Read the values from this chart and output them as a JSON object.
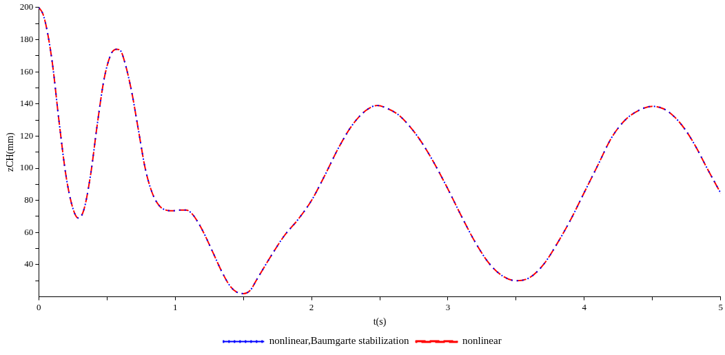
{
  "chart_data": {
    "type": "line",
    "xlabel": "t(s)",
    "ylabel": "zCH(mm)",
    "x": [
      0,
      0.03,
      0.06,
      0.1,
      0.15,
      0.2,
      0.25,
      0.29,
      0.33,
      0.38,
      0.43,
      0.48,
      0.53,
      0.57,
      0.6,
      0.63,
      0.68,
      0.73,
      0.78,
      0.83,
      0.88,
      0.93,
      0.98,
      1.03,
      1.08,
      1.12,
      1.17,
      1.22,
      1.28,
      1.34,
      1.4,
      1.45,
      1.5,
      1.55,
      1.6,
      1.7,
      1.8,
      1.9,
      2.0,
      2.1,
      2.2,
      2.3,
      2.4,
      2.48,
      2.56,
      2.64,
      2.72,
      2.8,
      2.9,
      3.0,
      3.1,
      3.2,
      3.3,
      3.4,
      3.5,
      3.6,
      3.7,
      3.8,
      3.9,
      4.0,
      4.1,
      4.2,
      4.3,
      4.4,
      4.5,
      4.58,
      4.66,
      4.74,
      4.82,
      4.9,
      5.0
    ],
    "series": [
      {
        "name": "nonlinear,Baumgarte stabilization",
        "color": "#0000ff",
        "line_style": "dotted",
        "values": [
          200,
          196,
          186,
          165,
          128,
          95,
          75,
          69,
          74,
          96,
          128,
          156,
          171,
          174,
          173,
          166,
          148,
          124,
          100,
          85,
          77,
          74,
          73.5,
          74,
          74,
          72,
          66,
          58,
          47,
          36,
          27,
          23,
          22,
          24,
          31,
          45,
          58,
          68,
          80,
          96,
          113,
          127,
          136,
          139,
          137,
          133,
          126,
          117,
          103,
          87,
          70,
          54,
          41,
          33,
          30,
          32,
          40,
          53,
          68,
          85,
          102,
          119,
          130,
          136,
          138.5,
          137,
          132,
          124,
          113,
          100,
          84.5
        ]
      },
      {
        "name": "nonlinear",
        "color": "#ff0000",
        "line_style": "dashed",
        "values": [
          200,
          196,
          186,
          165,
          128,
          95,
          75,
          69,
          74,
          96,
          128,
          156,
          171,
          174,
          173,
          166,
          148,
          124,
          100,
          85,
          77,
          74,
          73.5,
          74,
          74,
          72,
          66,
          58,
          47,
          36,
          27,
          23,
          22,
          24,
          31,
          45,
          58,
          68,
          80,
          96,
          113,
          127,
          136,
          139,
          137,
          133,
          126,
          117,
          103,
          87,
          70,
          54,
          41,
          33,
          30,
          32,
          40,
          53,
          68,
          85,
          102,
          119,
          130,
          136,
          138.5,
          137,
          132,
          124,
          113,
          100,
          84.5
        ]
      }
    ],
    "xlim": [
      0,
      5
    ],
    "xticks": [
      0,
      {
        "value": 0.5,
        "label": null
      },
      1,
      {
        "value": 1.5,
        "label": null
      },
      2,
      {
        "value": 2.5,
        "label": null
      },
      3,
      {
        "value": 3.5,
        "label": null
      },
      4,
      {
        "value": 4.5,
        "label": null
      },
      5
    ],
    "ylim": [
      20,
      200
    ],
    "yticks": [
      {
        "value": 30,
        "label": null
      },
      40,
      {
        "value": 50,
        "label": null
      },
      60,
      {
        "value": 70,
        "label": null
      },
      80,
      {
        "value": 90,
        "label": null
      },
      100,
      {
        "value": 110,
        "label": null
      },
      120,
      {
        "value": 130,
        "label": null
      },
      140,
      {
        "value": 150,
        "label": null
      },
      160,
      {
        "value": 170,
        "label": null
      },
      180,
      {
        "value": 190,
        "label": null
      },
      200
    ],
    "grid": false,
    "legend": "bottom",
    "marker": "none"
  }
}
